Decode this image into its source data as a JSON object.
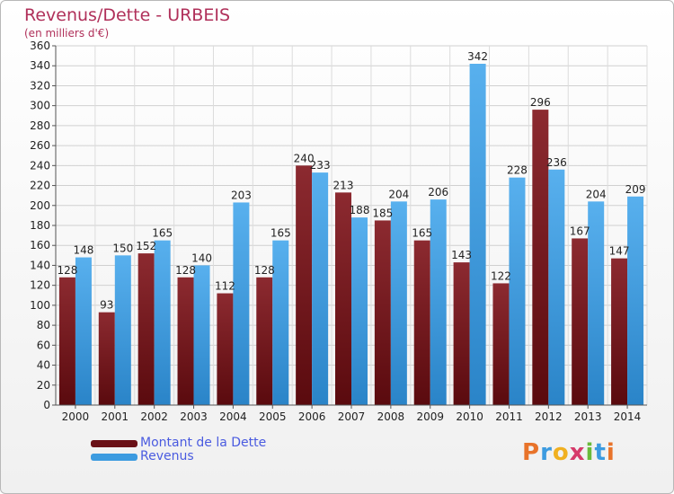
{
  "header": {
    "title": "Revenus/Dette - URBEIS",
    "subtitle": "(en milliers d'€)"
  },
  "colors": {
    "series_1": "#7a1a1f",
    "series_2": "#3c9be0",
    "title": "#b0305a",
    "legend_text": "#4a5be0"
  },
  "chart_data": {
    "type": "bar",
    "categories": [
      "2000",
      "2001",
      "2002",
      "2003",
      "2004",
      "2005",
      "2006",
      "2007",
      "2008",
      "2009",
      "2010",
      "2011",
      "2012",
      "2013",
      "2014"
    ],
    "series": [
      {
        "name": "Montant de la Dette",
        "values": [
          128,
          93,
          152,
          128,
          112,
          128,
          240,
          213,
          185,
          165,
          143,
          122,
          296,
          167,
          147
        ]
      },
      {
        "name": "Revenus",
        "values": [
          148,
          150,
          165,
          140,
          203,
          165,
          233,
          188,
          204,
          206,
          342,
          228,
          236,
          204,
          209
        ]
      }
    ],
    "ylim": [
      0,
      360
    ],
    "yticks": [
      0,
      20,
      40,
      60,
      80,
      100,
      120,
      140,
      160,
      180,
      200,
      220,
      240,
      260,
      280,
      300,
      320,
      340,
      360
    ],
    "grid": true,
    "legend_position": "bottom-left"
  },
  "logo": {
    "letters": [
      "P",
      "r",
      "o",
      "x",
      "i",
      "t",
      "i"
    ]
  }
}
